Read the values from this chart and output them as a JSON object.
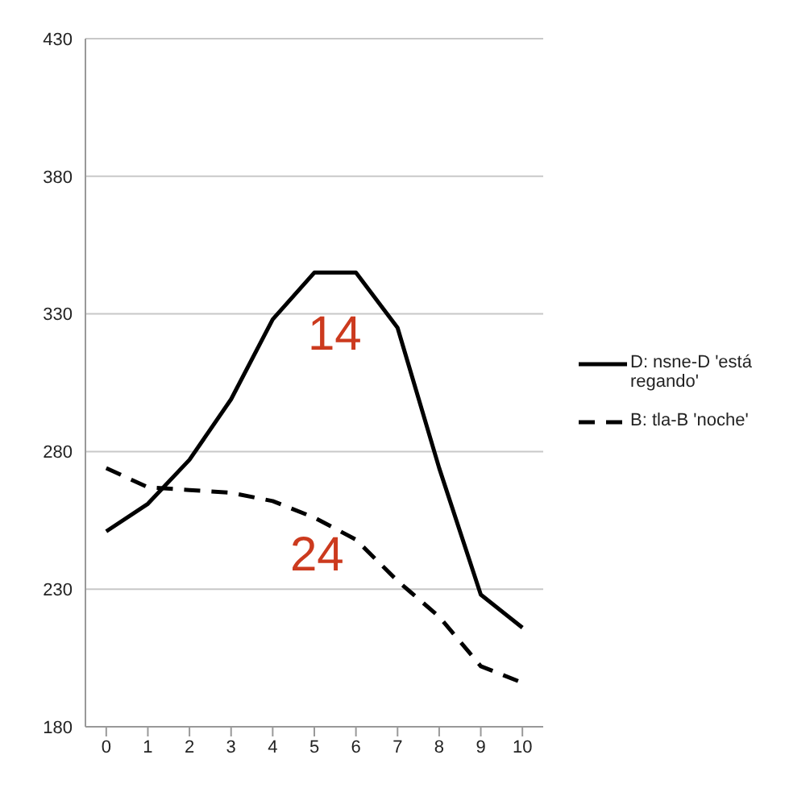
{
  "chart_data": {
    "type": "line",
    "x": [
      0,
      1,
      2,
      3,
      4,
      5,
      6,
      7,
      8,
      9,
      10
    ],
    "xlim": [
      -0.5,
      10.5
    ],
    "xticks": [
      0,
      1,
      2,
      3,
      4,
      5,
      6,
      7,
      8,
      9,
      10
    ],
    "ylim": [
      180,
      430
    ],
    "yticks": [
      180,
      230,
      280,
      330,
      380,
      430
    ],
    "grid": "y",
    "legend": "right",
    "marker": "none",
    "series": [
      {
        "name": "D: nsne-D 'está regando'",
        "color": "#000000",
        "line_style": "solid",
        "values": [
          251,
          261,
          277,
          299,
          328,
          345,
          345,
          325,
          274,
          228,
          216
        ]
      },
      {
        "name": "B: tla-B 'noche'",
        "color": "#000000",
        "line_style": "dashed",
        "values": [
          274,
          267,
          266,
          265,
          262,
          256,
          248,
          233,
          220,
          202,
          196
        ]
      }
    ],
    "annotations": [
      "14",
      "24"
    ]
  }
}
